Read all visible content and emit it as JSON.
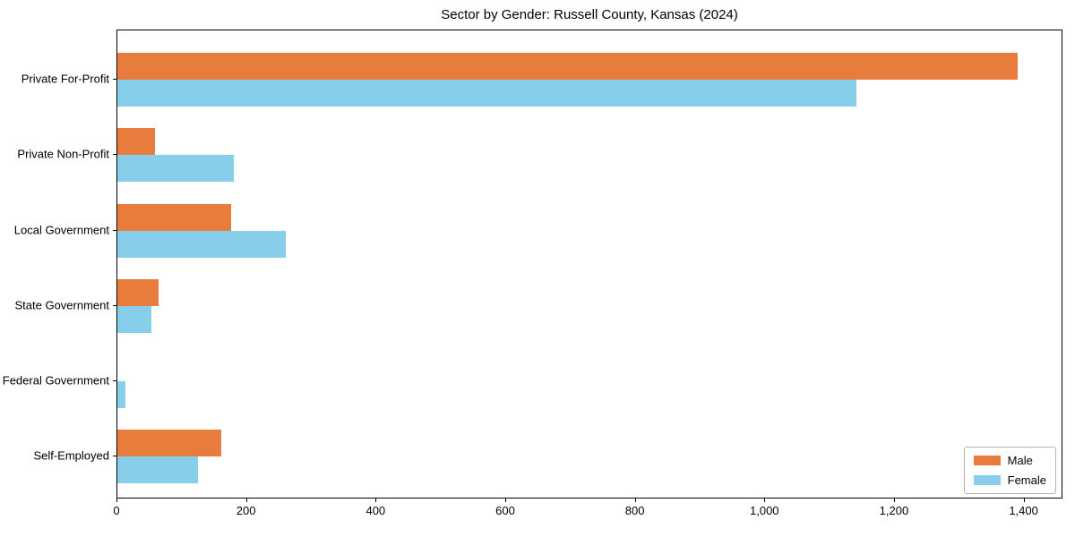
{
  "chart_data": {
    "type": "bar",
    "orientation": "horizontal",
    "title": "Sector by Gender: Russell County, Kansas (2024)",
    "categories": [
      "Private For-Profit",
      "Private Non-Profit",
      "Local Government",
      "State Government",
      "Federal Government",
      "Self-Employed"
    ],
    "series": [
      {
        "name": "Male",
        "color": "#e87c3c",
        "values": [
          1390,
          58,
          176,
          64,
          0,
          160
        ]
      },
      {
        "name": "Female",
        "color": "#87ceeb",
        "values": [
          1140,
          180,
          260,
          52,
          12,
          125
        ]
      }
    ],
    "xlabel": "",
    "ylabel": "",
    "xlim": [
      0,
      1460
    ],
    "xticks": {
      "values": [
        0,
        200,
        400,
        600,
        800,
        1000,
        1200,
        1400
      ],
      "labels": [
        "0",
        "200",
        "400",
        "600",
        "800",
        "1,000",
        "1,200",
        "1,400"
      ]
    },
    "grid": false,
    "legend": {
      "position": "lower right",
      "entries": [
        "Male",
        "Female"
      ]
    }
  }
}
